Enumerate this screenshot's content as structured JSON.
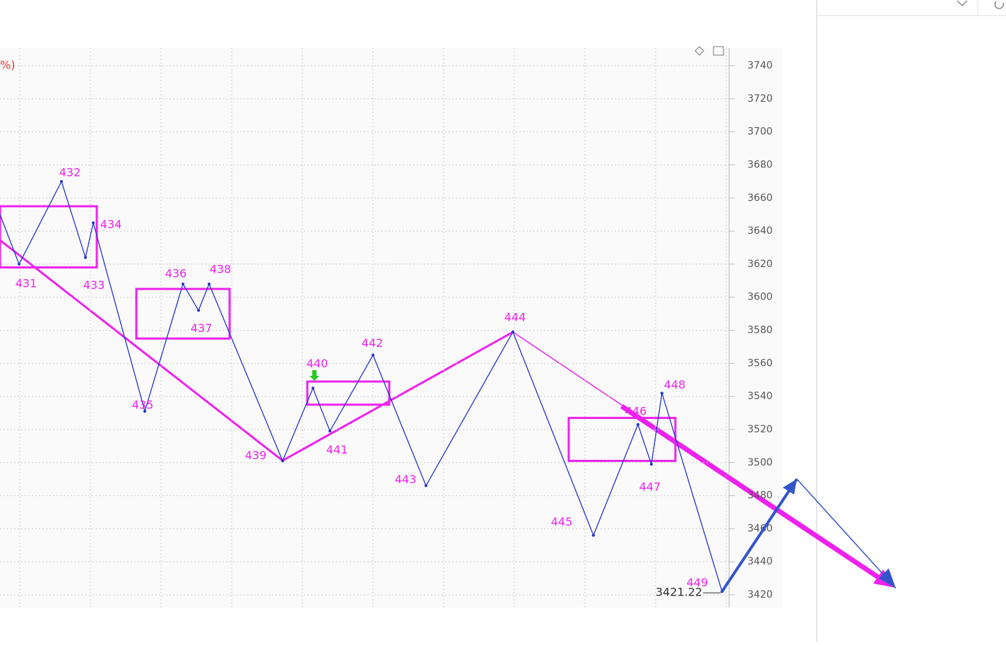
{
  "chart_data": {
    "type": "line",
    "corner_text": "%)",
    "categories": [
      "431",
      "432",
      "433",
      "434",
      "435",
      "436",
      "437",
      "438",
      "439",
      "440",
      "441",
      "442",
      "443",
      "444",
      "445",
      "446",
      "447",
      "448",
      "449"
    ],
    "values": [
      3620,
      3670,
      3624,
      3645,
      3531,
      3608,
      3592,
      3608,
      3501,
      3545,
      3519,
      3565,
      3486,
      3579,
      3456,
      3523,
      3499,
      3542,
      3422
    ],
    "color": "#2233cc",
    "label_color": "#ee22ee",
    "projection": [
      3490,
      3424
    ],
    "boxes": [
      {
        "low": 3618,
        "high": 3655
      },
      {
        "low": 3575,
        "high": 3605
      },
      {
        "low": 3535,
        "high": 3549
      },
      {
        "low": 3501,
        "high": 3527
      }
    ],
    "box_color": "#ee22ee",
    "last_price": 3421.22,
    "ylim": [
      3420,
      3740
    ],
    "yticks": [
      3420,
      3440,
      3460,
      3480,
      3500,
      3520,
      3540,
      3560,
      3580,
      3600,
      3620,
      3640,
      3660,
      3680,
      3700,
      3720,
      3740
    ],
    "grid": true
  }
}
